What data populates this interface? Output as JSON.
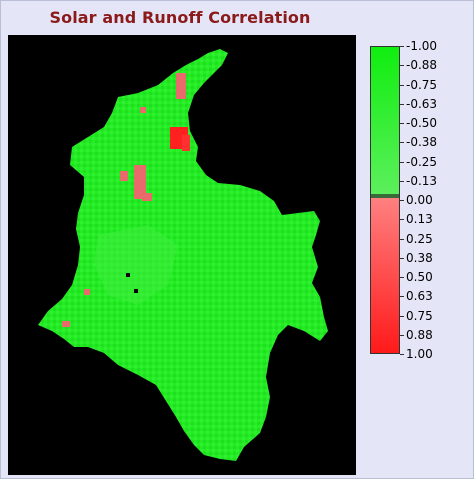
{
  "title": "Solar and Runoff Correlation",
  "legend": {
    "labels": [
      "-1.00",
      "-0.88",
      "-0.75",
      "-0.63",
      "-0.50",
      "-0.38",
      "-0.25",
      "-0.13",
      "0.00",
      "0.13",
      "0.25",
      "0.38",
      "0.50",
      "0.63",
      "0.75",
      "0.88",
      "1.00"
    ],
    "range": [
      -1.0,
      1.0
    ],
    "negative_color_top": "#10ee10",
    "negative_color_bottom": "#5cef5c",
    "positive_color_top": "#ff8080",
    "positive_color_bottom": "#ff1a1a"
  },
  "map": {
    "background_color": "#000000",
    "region_color": "#22ee22",
    "patch_color": "#e86a6a",
    "strong_patch_color": "#ff2020"
  }
}
